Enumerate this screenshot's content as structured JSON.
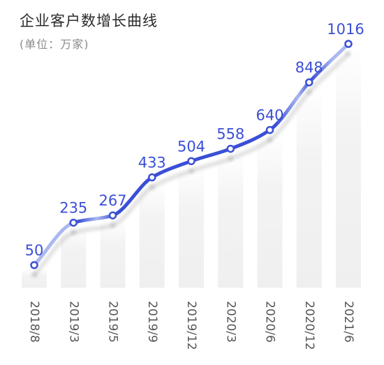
{
  "chart_data": {
    "type": "line",
    "title": "企业客户数增长曲线",
    "subtitle": "(单位：万家)",
    "categories": [
      "2018/8",
      "2019/3",
      "2019/5",
      "2019/9",
      "2019/12",
      "2020/3",
      "2020/6",
      "2020/12",
      "2021/6"
    ],
    "values": [
      50,
      235,
      267,
      433,
      504,
      558,
      640,
      848,
      1016
    ],
    "data_labels": [
      "50",
      "235",
      "267",
      "433",
      "504",
      "558",
      "640",
      "848",
      "1016"
    ],
    "ylim": [
      0,
      1016
    ],
    "grid": false,
    "legend": "none",
    "colors": {
      "line": "#3a4fd6",
      "line_light": "#aab8f0",
      "label": "#3a4fd6",
      "column": "#f3f3f3",
      "tick": "#555555"
    }
  }
}
